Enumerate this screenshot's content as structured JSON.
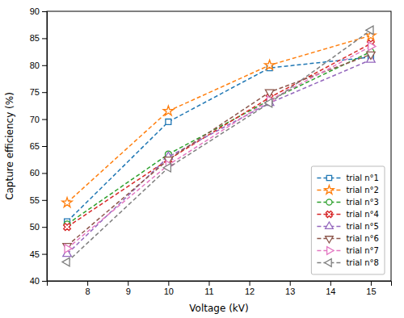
{
  "chart_data": {
    "type": "line",
    "x": [
      7.5,
      10.0,
      12.5,
      15.0
    ],
    "series": [
      {
        "name": "trial n°1",
        "marker": "square",
        "values": [
          51.0,
          69.5,
          79.5,
          81.5
        ]
      },
      {
        "name": "trial n°2",
        "marker": "star",
        "values": [
          54.5,
          71.5,
          80.0,
          85.5
        ]
      },
      {
        "name": "trial n°3",
        "marker": "circle",
        "values": [
          50.5,
          63.5,
          73.5,
          82.5
        ]
      },
      {
        "name": "trial n°4",
        "marker": "x",
        "values": [
          50.0,
          62.5,
          74.0,
          84.0
        ]
      },
      {
        "name": "trial n°5",
        "marker": "triangle-up",
        "values": [
          45.0,
          63.0,
          73.0,
          81.0
        ]
      },
      {
        "name": "trial n°6",
        "marker": "triangle-down",
        "values": [
          46.5,
          62.5,
          75.0,
          82.0
        ]
      },
      {
        "name": "trial n°7",
        "marker": "triangle-right",
        "values": [
          46.0,
          61.5,
          73.5,
          83.5
        ]
      },
      {
        "name": "trial n°8",
        "marker": "triangle-left",
        "values": [
          43.5,
          61.0,
          73.0,
          86.5
        ]
      }
    ],
    "x_label": "Voltage (kV)",
    "y_label": "Capture efficiency (%)",
    "xlim": [
      7.0,
      15.5
    ],
    "ylim": [
      40,
      90
    ],
    "xticks": [
      8,
      9,
      10,
      11,
      12,
      13,
      14,
      15
    ],
    "yticks": [
      40,
      45,
      50,
      55,
      60,
      65,
      70,
      75,
      80,
      85,
      90
    ],
    "line_style": "dashed",
    "legend": "lower right",
    "grid": false
  }
}
